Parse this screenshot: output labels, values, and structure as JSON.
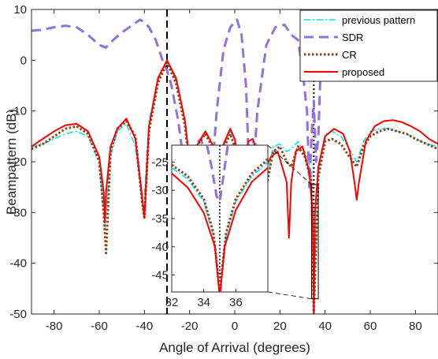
{
  "chart_data": {
    "type": "line",
    "title": "",
    "xlabel": "Angle of Arrival (degrees)",
    "ylabel": "Beampattern (dB)",
    "xlim": [
      -90,
      90
    ],
    "ylim": [
      -50,
      10
    ],
    "xticks": [
      -80,
      -60,
      -40,
      -20,
      0,
      20,
      40,
      60,
      80
    ],
    "yticks": [
      10,
      0,
      -10,
      -20,
      -30,
      -40,
      -50
    ],
    "grid": false,
    "legend_position": "top-right",
    "vlines": [
      {
        "x": -30,
        "style": "dashed",
        "color": "#000000"
      },
      {
        "x": 35,
        "style": "dotted",
        "color": "#000000"
      }
    ],
    "series": [
      {
        "name": "previous pattern",
        "color": "#00e5ee",
        "style": "dashdot",
        "x": [
          -90,
          -85,
          -80,
          -75,
          -70,
          -65,
          -60,
          -57.5,
          -55,
          -52,
          -48,
          -44,
          -41,
          -40,
          -38,
          -34,
          -30,
          -26,
          -22,
          -19,
          -17,
          -13,
          -10,
          -8,
          -5,
          -2,
          0,
          3,
          6,
          8,
          11,
          14,
          17,
          20,
          23,
          25,
          28,
          31,
          34,
          35,
          37,
          40,
          43,
          47,
          50,
          54,
          57,
          60,
          64,
          68,
          72,
          76,
          80,
          85,
          90
        ],
        "y": [
          -17,
          -16.5,
          -15.5,
          -14.5,
          -14,
          -15,
          -20,
          -33,
          -19,
          -14,
          -12.5,
          -17,
          -28,
          -27,
          -12,
          -4,
          0,
          -4,
          -12,
          -24,
          -17,
          -14,
          -16,
          -25,
          -17,
          -14,
          -16,
          -22,
          -17,
          -16,
          -20,
          -24.5,
          -17,
          -16.5,
          -18,
          -17.5,
          -16,
          -18,
          -22,
          -50,
          -22,
          -14.5,
          -14,
          -15,
          -17,
          -20,
          -16,
          -14,
          -13.5,
          -13.5,
          -14,
          -14.5,
          -15.5,
          -16.5,
          -17
        ]
      },
      {
        "name": "SDR",
        "color": "#9370db",
        "style": "dashed",
        "x": [
          -90,
          -85,
          -80,
          -75,
          -70,
          -65,
          -60,
          -57,
          -55,
          -50,
          -45,
          -42,
          -40,
          -38,
          -35,
          -32,
          -30,
          -28,
          -25,
          -22,
          -20,
          -18,
          -16,
          -15,
          -14,
          -12,
          -10,
          -8,
          -5,
          -2,
          1,
          3,
          5,
          7,
          10,
          14,
          18,
          22,
          25,
          28,
          30,
          32,
          33,
          34,
          35,
          36,
          37,
          38,
          41,
          45,
          50,
          55,
          60,
          65,
          70,
          75,
          80,
          85,
          90
        ],
        "y": [
          5.8,
          6,
          6.5,
          6.8,
          6.5,
          5,
          3,
          2.5,
          3.5,
          5.5,
          7,
          8,
          7.5,
          6.5,
          4,
          0,
          -2,
          -5,
          -12,
          -22,
          -26,
          -21,
          -16,
          -15.5,
          -17,
          -20,
          -22,
          -10,
          2,
          6.5,
          8,
          5,
          -5,
          -30,
          -10,
          3,
          6.5,
          7,
          5,
          4,
          -2,
          -10,
          -25,
          -15,
          -8,
          -20,
          -15,
          -2,
          3,
          5,
          6,
          6.3,
          6.5,
          6.5,
          6.7,
          6.5,
          6.5,
          6.5,
          6.5
        ]
      },
      {
        "name": "CR",
        "color": "#8b4513",
        "style": "dotted",
        "x": [
          -90,
          -85,
          -80,
          -75,
          -70,
          -65,
          -60,
          -58,
          -57,
          -55,
          -52,
          -48,
          -44,
          -41,
          -40,
          -38,
          -34,
          -30,
          -26,
          -22,
          -19,
          -17,
          -13,
          -10,
          -8,
          -5,
          -2,
          0,
          3,
          6,
          8,
          11,
          14,
          17,
          20,
          23,
          25,
          28,
          31,
          34,
          35,
          37,
          40,
          43,
          47,
          50,
          54,
          57,
          60,
          64,
          68,
          72,
          76,
          80,
          85,
          90
        ],
        "y": [
          -17.5,
          -16.5,
          -15,
          -13.5,
          -13,
          -14.5,
          -20,
          -30,
          -38,
          -18,
          -13.5,
          -12,
          -15,
          -28,
          -31,
          -14,
          -4.5,
          -0.5,
          -4.5,
          -13,
          -25,
          -17,
          -14.5,
          -17,
          -26,
          -17.5,
          -14.5,
          -17,
          -23.5,
          -18,
          -17,
          -21,
          -25,
          -18,
          -17,
          -20,
          -21,
          -17,
          -19,
          -24,
          -50,
          -23,
          -16,
          -15.5,
          -16.5,
          -18.5,
          -21,
          -17,
          -15,
          -14,
          -13.5,
          -14,
          -14.5,
          -15.5,
          -16.5,
          -17.5
        ]
      },
      {
        "name": "proposed",
        "color": "#ff0000",
        "style": "solid",
        "x": [
          -90,
          -85,
          -80,
          -75,
          -70,
          -65,
          -60,
          -58,
          -57.5,
          -57,
          -55,
          -52,
          -48,
          -44,
          -41,
          -40,
          -38,
          -34,
          -30,
          -26,
          -22,
          -19,
          -17,
          -13,
          -10,
          -8,
          -5,
          -2,
          0,
          3,
          6,
          8,
          11,
          13,
          16,
          19,
          21,
          23,
          24,
          25,
          27,
          30,
          33,
          34.5,
          35,
          35.5,
          37,
          40,
          44,
          48,
          51,
          53,
          54,
          55,
          58,
          62,
          66,
          70,
          74,
          78,
          82,
          86,
          90
        ],
        "y": [
          -17,
          -15.5,
          -14,
          -12.8,
          -12.5,
          -14,
          -19,
          -26,
          -32,
          -26,
          -17,
          -13.5,
          -11.5,
          -15.5,
          -27,
          -31,
          -13,
          -3.5,
          0,
          -3.5,
          -12,
          -24,
          -17,
          -14,
          -16.5,
          -25,
          -16.5,
          -13.5,
          -15.5,
          -22.5,
          -16,
          -15.5,
          -19.5,
          -22,
          -19,
          -18,
          -21,
          -24,
          -35,
          -24,
          -18,
          -17,
          -22,
          -30,
          -50,
          -30,
          -21,
          -15,
          -13.5,
          -14.5,
          -18,
          -24,
          -27.5,
          -24,
          -16,
          -13,
          -12,
          -11.8,
          -12.2,
          -13,
          -14,
          -15.5,
          -16.5
        ]
      }
    ],
    "inset": {
      "xlim": [
        32,
        38
      ],
      "ylim": [
        -48,
        -22
      ],
      "xticks": [
        32,
        34,
        36
      ],
      "yticks": [
        -25,
        -30,
        -35,
        -40,
        -45
      ],
      "source_box": {
        "xlim": [
          34,
          37
        ],
        "ylim": [
          -47,
          -24.5
        ]
      },
      "series": [
        {
          "name": "previous pattern",
          "x": [
            32,
            33,
            34,
            34.6,
            34.85,
            35,
            35.15,
            35.4,
            36,
            37,
            38
          ],
          "y": [
            -26,
            -28,
            -32,
            -38,
            -45,
            -49,
            -45,
            -38,
            -32,
            -27.5,
            -25
          ]
        },
        {
          "name": "SDR",
          "x": [
            34.2,
            34.5,
            34.8,
            35,
            35.2,
            35.5
          ],
          "y": [
            -22,
            -26,
            -31,
            -32,
            -28,
            -22
          ]
        },
        {
          "name": "CR",
          "x": [
            32,
            33,
            34,
            34.6,
            34.85,
            35,
            35.15,
            35.4,
            36,
            37,
            38
          ],
          "y": [
            -25.5,
            -27.5,
            -31.5,
            -37.5,
            -44,
            -48.5,
            -44,
            -37.5,
            -31.5,
            -27,
            -24.5
          ]
        },
        {
          "name": "proposed",
          "x": [
            32,
            33,
            34,
            34.7,
            34.9,
            35,
            35.1,
            35.3,
            36,
            37,
            38
          ],
          "y": [
            -27,
            -29.5,
            -34,
            -40,
            -46,
            -49,
            -46,
            -40,
            -33.5,
            -28.5,
            -26
          ]
        }
      ]
    }
  }
}
